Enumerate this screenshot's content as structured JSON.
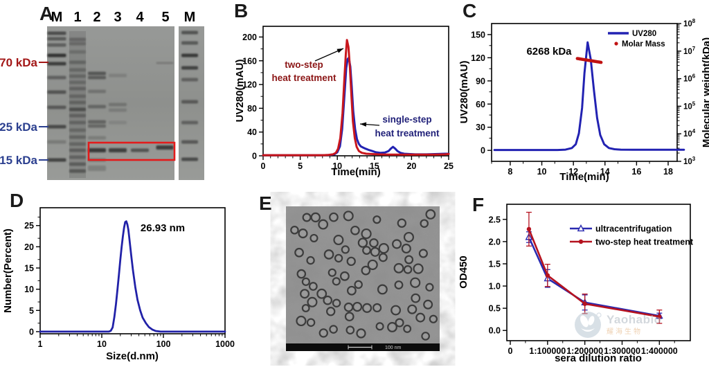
{
  "figure": {
    "panels": {
      "A": {
        "letter": "A",
        "lane_labels": [
          "M",
          "1",
          "2",
          "3",
          "4",
          "5",
          "M"
        ],
        "markers": [
          {
            "label": "70 kDa",
            "color": "#a31717"
          },
          {
            "label": "25 kDa",
            "color": "#2b3f8f"
          },
          {
            "label": "15 kDa",
            "color": "#2b3f8f"
          }
        ],
        "highlight_box_color": "#e31b1b"
      },
      "B": {
        "letter": "B"
      },
      "C": {
        "letter": "C",
        "mass_label": "6268 kDa"
      },
      "D": {
        "letter": "D",
        "peak_label": "26.93 nm"
      },
      "E": {
        "letter": "E",
        "scale_bar": "100 nm"
      },
      "F": {
        "letter": "F",
        "watermark": {
          "brand": "Yaohabio",
          "subtext": "耀海生物"
        }
      }
    }
  },
  "chart_data": [
    {
      "id": "B",
      "type": "line",
      "xlabel": "Time(min)",
      "ylabel": "UV280(mAU)",
      "xlim": [
        0,
        25
      ],
      "ylim": [
        0,
        218
      ],
      "xticks": [
        0,
        5,
        10,
        15,
        20,
        25
      ],
      "yticks": [
        0,
        40,
        80,
        120,
        160,
        200
      ],
      "series": [
        {
          "name": "two-step heat treatment",
          "color": "#c8161d",
          "x": [
            0,
            2,
            4,
            6,
            8,
            8.8,
            9.4,
            9.8,
            10.1,
            10.4,
            10.7,
            10.95,
            11.15,
            11.3,
            11.5,
            11.7,
            11.9,
            12.1,
            12.35,
            12.6,
            12.9,
            13.3,
            13.9,
            14.6,
            15.5,
            17,
            19,
            21,
            23,
            24.5,
            25
          ],
          "y": [
            1,
            1,
            1,
            1,
            1,
            1.5,
            2.5,
            5,
            12,
            30,
            72,
            130,
            172,
            195,
            183,
            148,
            100,
            58,
            30,
            15,
            8,
            5,
            3.5,
            3,
            2.5,
            2,
            2,
            2,
            2,
            2.5,
            3
          ]
        },
        {
          "name": "single-step heat treatment",
          "color": "#2222b2",
          "x": [
            0,
            2,
            4,
            6,
            8,
            9,
            9.6,
            10,
            10.35,
            10.65,
            10.95,
            11.2,
            11.4,
            11.55,
            11.75,
            11.95,
            12.15,
            12.4,
            12.65,
            12.9,
            13.15,
            13.45,
            13.8,
            14.2,
            14.7,
            15.2,
            15.8,
            16.4,
            16.9,
            17.2,
            17.5,
            17.8,
            18.1,
            18.5,
            19,
            19.6,
            20.5,
            22,
            23.5,
            24.5,
            25
          ],
          "y": [
            1,
            1,
            1,
            1,
            1,
            1.5,
            2.5,
            6,
            16,
            45,
            100,
            148,
            163,
            165,
            150,
            115,
            75,
            45,
            28,
            20,
            16,
            14,
            12,
            10,
            8,
            6,
            5,
            5.5,
            8,
            12,
            15,
            12,
            8,
            5,
            3.5,
            3,
            2.5,
            2.5,
            3,
            3.5,
            3.5
          ]
        }
      ],
      "annotations": [
        {
          "lines": [
            "two-step",
            "heat treatment"
          ],
          "color": "#8b1515"
        },
        {
          "lines": [
            "single-step",
            "heat treatment"
          ],
          "color": "#1f1f78"
        }
      ]
    },
    {
      "id": "C",
      "type": "line",
      "xlabel": "Time(min)",
      "ylabel": "UV280(mAU)",
      "y2label": "Molecular weight(kDa)",
      "xlim": [
        6.82,
        18.57
      ],
      "ylim": [
        -14.2,
        164.3
      ],
      "y2_log_range": [
        3,
        8
      ],
      "xticks": [
        8,
        10,
        12,
        14,
        16,
        18
      ],
      "yticks": [
        0,
        30,
        60,
        90,
        120,
        150
      ],
      "series": [
        {
          "name": "UV280",
          "color": "#2222b2",
          "x": [
            7,
            8,
            9,
            10,
            11,
            11.5,
            11.9,
            12.15,
            12.35,
            12.55,
            12.7,
            12.9,
            13.1,
            13.3,
            13.5,
            13.7,
            13.95,
            14.25,
            14.6,
            15,
            15.8,
            17,
            18,
            19
          ],
          "y": [
            0.5,
            0.5,
            0.5,
            0.5,
            0.5,
            1,
            3,
            8,
            22,
            55,
            100,
            140,
            118,
            78,
            42,
            20,
            8,
            3,
            1.5,
            1,
            0.8,
            0.8,
            0.8,
            0.8
          ]
        },
        {
          "name": "Molar Mass",
          "type": "dots",
          "color": "#c01212",
          "x_range": [
            12.25,
            13.75
          ],
          "value_kda": 6268
        }
      ],
      "legend": [
        {
          "label": "UV280",
          "color": "#2222b2",
          "sample": "line"
        },
        {
          "label": "Molar Mass",
          "color": "#c01212",
          "sample": "dot"
        }
      ],
      "mass_annotation": "6268 kDa"
    },
    {
      "id": "D",
      "type": "line",
      "xlabel": "Size(d.nm)",
      "ylabel": "Number(Percent)",
      "xscale": "log",
      "xlim": [
        1,
        1000
      ],
      "ylim": [
        -0.5,
        29.2
      ],
      "xticks": [
        1,
        10,
        100,
        1000
      ],
      "yticks": [
        0,
        5,
        10,
        15,
        20,
        25
      ],
      "peak_annotation": "26.93 nm",
      "series": [
        {
          "name": "number distribution",
          "color": "#2121a8",
          "x": [
            1,
            5,
            10,
            13,
            14,
            15,
            16,
            17,
            18,
            19,
            20,
            21,
            22,
            23,
            24,
            25,
            26,
            27,
            28,
            30,
            32,
            35,
            38,
            42,
            46,
            52,
            58,
            66,
            75,
            90,
            150,
            400,
            1000
          ],
          "y": [
            0,
            0,
            0,
            0,
            0.2,
            1,
            3.5,
            6.5,
            10,
            13.5,
            17,
            20,
            22.5,
            24.5,
            25.8,
            26,
            25.3,
            24,
            22,
            18,
            14.5,
            10.5,
            7.5,
            5,
            3.3,
            2,
            1.1,
            0.5,
            0.15,
            0,
            0,
            0,
            0
          ]
        }
      ]
    },
    {
      "id": "F",
      "type": "line",
      "xlabel": "sera dilution ratio",
      "ylabel": "OD450",
      "xlim": [
        -9300,
        483000
      ],
      "ylim": [
        -0.23,
        2.84
      ],
      "xticks": [
        0,
        100000,
        200000,
        300000,
        400000
      ],
      "xtick_labels": [
        "0",
        "1:100000",
        "1:200000",
        "1:300000",
        "1:400000"
      ],
      "yticks": [
        0,
        0.5,
        1,
        1.5,
        2,
        2.5
      ],
      "ytick_decimals": 1,
      "series": [
        {
          "name": "ultracentrifugation",
          "color": "#2a2ab0",
          "marker": "open-triangle",
          "x": [
            50000,
            100000,
            200000,
            400000
          ],
          "y": [
            2.1,
            1.17,
            0.63,
            0.33
          ],
          "yerr": [
            0.12,
            0.2,
            0.17,
            0.06
          ]
        },
        {
          "name": "two-step heat treatment",
          "color": "#b5121f",
          "marker": "filled-circle",
          "x": [
            50000,
            100000,
            200000,
            400000
          ],
          "y": [
            2.28,
            1.24,
            0.6,
            0.31
          ],
          "yerr": [
            0.38,
            0.25,
            0.22,
            0.15
          ]
        }
      ],
      "legend": [
        {
          "label": "ultracentrifugation",
          "color": "#2a2ab0",
          "sample": "open-triangle"
        },
        {
          "label": "two-step heat treatment",
          "color": "#b5121f",
          "sample": "filled-circle"
        }
      ]
    }
  ]
}
